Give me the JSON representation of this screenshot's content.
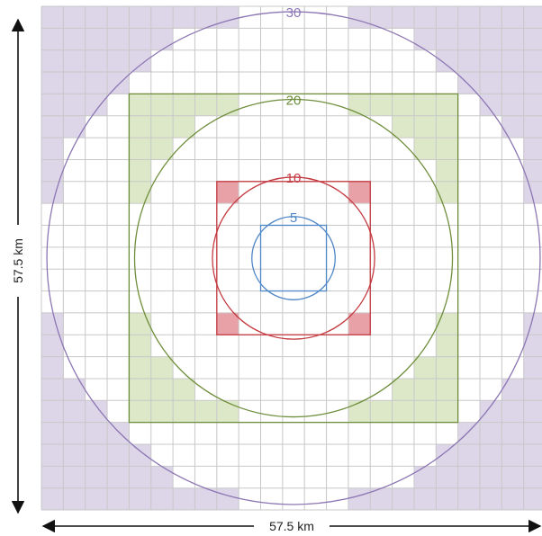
{
  "colors": {
    "grid": "#c8c8c8",
    "purple_fill": "#ddd5e8",
    "purple_line": "#8c76b3",
    "green_fill": "#dde8c8",
    "green_line": "#6f8e3c",
    "red_fill": "#e8a1a7",
    "red_line": "#c3393f",
    "blue_line": "#4f86c6",
    "arrow": "#111111"
  },
  "diagram": {
    "grid_cells": 23,
    "labels": {
      "horizontal": "57.5 km",
      "vertical": "57.5 km"
    },
    "rings": [
      {
        "radius_label": "30",
        "color_key": "purple"
      },
      {
        "radius_label": "20",
        "color_key": "green"
      },
      {
        "radius_label": "10",
        "color_key": "red"
      },
      {
        "radius_label": "5",
        "color_key": "blue"
      }
    ]
  }
}
